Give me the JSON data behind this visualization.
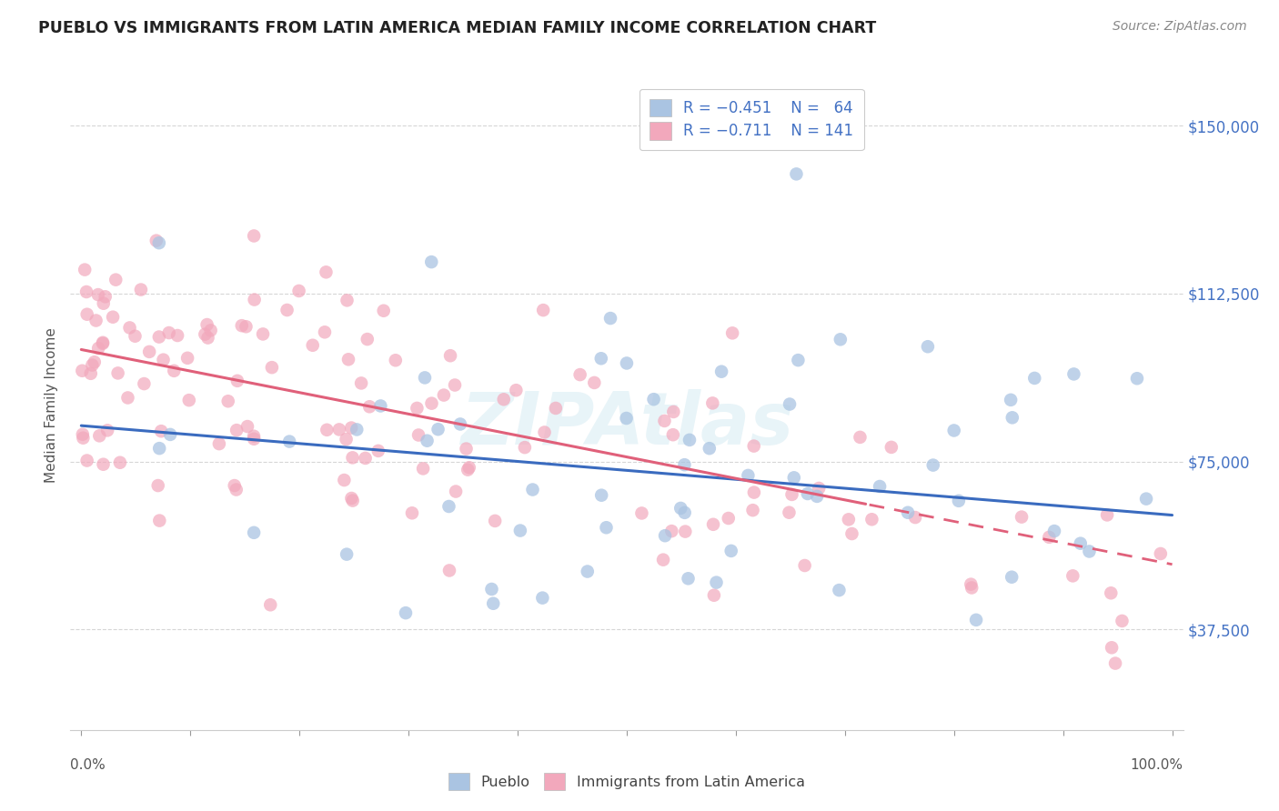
{
  "title": "PUEBLO VS IMMIGRANTS FROM LATIN AMERICA MEDIAN FAMILY INCOME CORRELATION CHART",
  "source": "Source: ZipAtlas.com",
  "ylabel": "Median Family Income",
  "ytick_labels": [
    "$37,500",
    "$75,000",
    "$112,500",
    "$150,000"
  ],
  "ytick_values": [
    37500,
    75000,
    112500,
    150000
  ],
  "ymin": 15000,
  "ymax": 160000,
  "xmin": -0.01,
  "xmax": 1.01,
  "pueblo_color": "#aac4e2",
  "immigrants_color": "#f2a8bc",
  "pueblo_line_color": "#3a6bbf",
  "immigrants_line_color": "#e0607a",
  "pueblo_line_slope": -20000,
  "pueblo_line_intercept": 83000,
  "immigrants_line_slope": -48000,
  "immigrants_line_intercept": 100000,
  "pueblo_marker_size": 110,
  "immigrants_marker_size": 110,
  "pueblo_alpha": 0.75,
  "immigrants_alpha": 0.7
}
